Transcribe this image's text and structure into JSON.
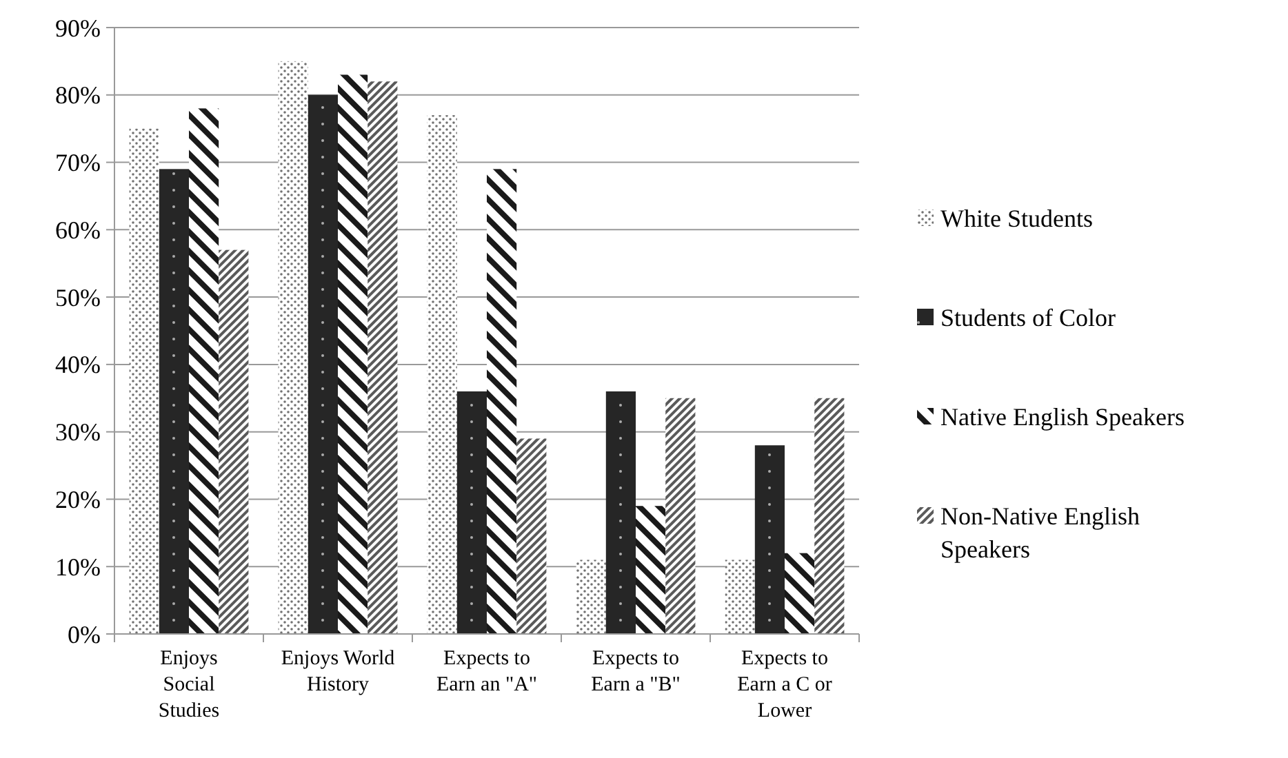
{
  "chart_data": {
    "type": "bar",
    "categories": [
      "Enjoys Social Studies",
      "Enjoys World History",
      "Expects to Earn an \"A\"",
      "Expects to Earn a \"B\"",
      "Expects to Earn a C or Lower"
    ],
    "series": [
      {
        "name": "White Students",
        "color": "#e6e6e6",
        "values": [
          75,
          85,
          77,
          11,
          11
        ]
      },
      {
        "name": "Students of Color",
        "color": "#262626",
        "values": [
          69,
          80,
          36,
          36,
          28
        ]
      },
      {
        "name": "Native English Speakers",
        "color": "#8c8c8c",
        "values": [
          78,
          83,
          69,
          19,
          12
        ]
      },
      {
        "name": "Non-Native English Speakers",
        "color": "#5a5a5a",
        "values": [
          57,
          82,
          29,
          35,
          35
        ]
      }
    ],
    "ylim": [
      0,
      90
    ],
    "yticks": [
      {
        "value": 0,
        "label": "0%"
      },
      {
        "value": 10,
        "label": "10%"
      },
      {
        "value": 20,
        "label": "20%"
      },
      {
        "value": 30,
        "label": "30%"
      },
      {
        "value": 40,
        "label": "40%"
      },
      {
        "value": 50,
        "label": "50%"
      },
      {
        "value": 60,
        "label": "60%"
      },
      {
        "value": 70,
        "label": "70%"
      },
      {
        "value": 80,
        "label": "80%"
      },
      {
        "value": 90,
        "label": "90%"
      }
    ],
    "grid": "y",
    "legend": "right"
  }
}
